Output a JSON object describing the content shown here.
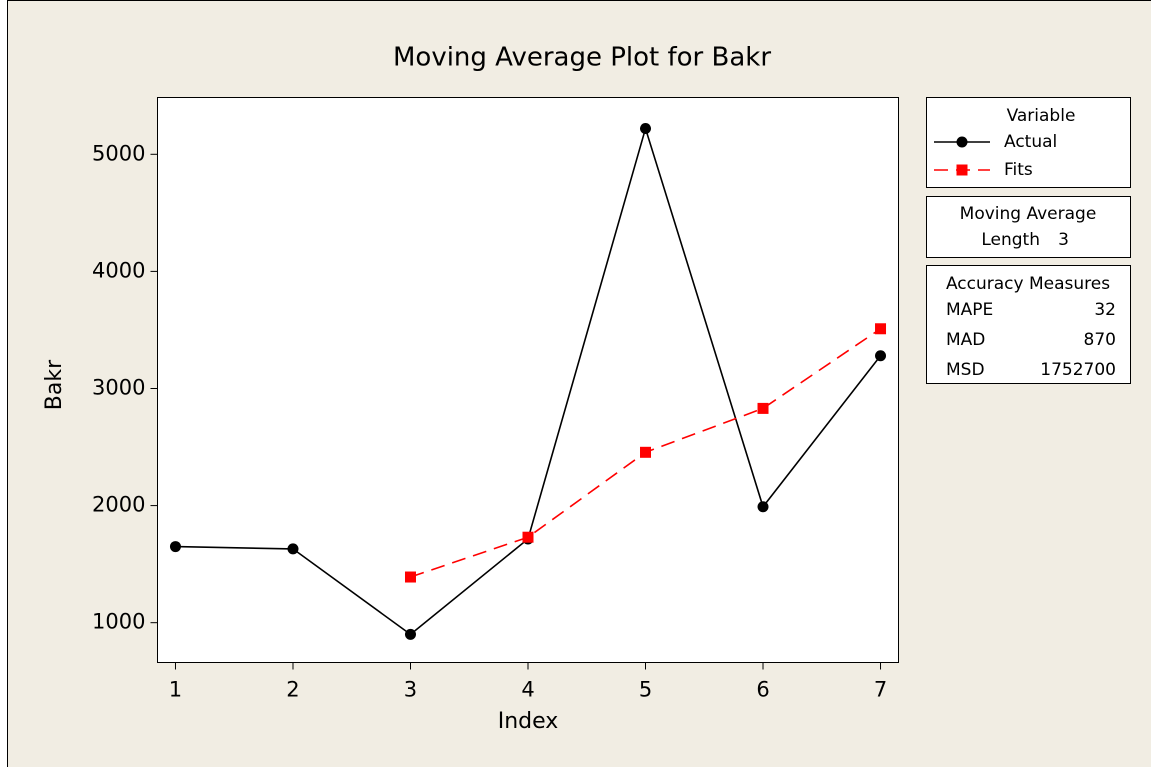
{
  "chart_data": {
    "type": "line",
    "title": "Moving Average Plot for Bakr",
    "x_label": "Index",
    "y_label": "Bakr",
    "x": [
      1,
      2,
      3,
      4,
      5,
      6,
      7
    ],
    "xlim": [
      0.847,
      7.153
    ],
    "xticks": [
      1,
      2,
      3,
      4,
      5,
      6,
      7
    ],
    "ylim": [
      660,
      5485
    ],
    "yticks": [
      1000,
      2000,
      3000,
      4000,
      5000
    ],
    "legend_title": "Variable",
    "series": [
      {
        "name": "Actual",
        "color": "#000000",
        "marker": "circle",
        "dash": "solid",
        "values": [
          1650,
          1630,
          900,
          1715,
          5220,
          1990,
          3280
        ]
      },
      {
        "name": "Fits",
        "color": "#ff0000",
        "marker": "square",
        "dash": "dashed",
        "values": [
          null,
          null,
          1390,
          1730,
          2455,
          2830,
          3510
        ]
      }
    ],
    "method": {
      "title": "Moving Average",
      "rows": [
        [
          "Length",
          3
        ]
      ]
    },
    "accuracy": {
      "title": "Accuracy Measures",
      "rows": [
        [
          "MAPE",
          32
        ],
        [
          "MAD",
          870
        ],
        [
          "MSD",
          1752700
        ]
      ]
    }
  }
}
